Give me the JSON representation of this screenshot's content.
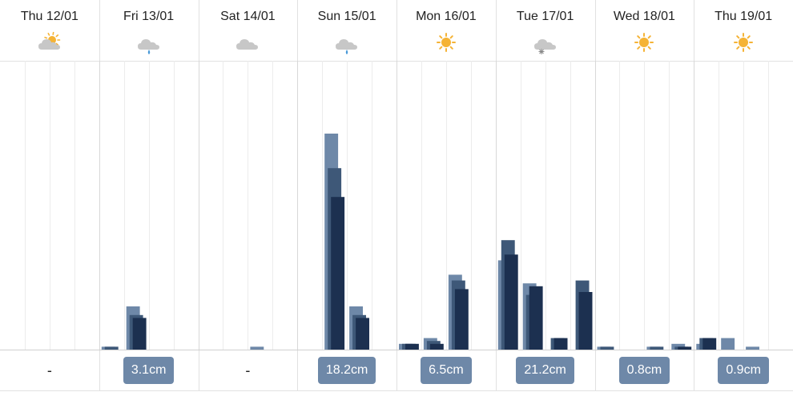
{
  "chart_data": {
    "type": "bar",
    "days": [
      {
        "label": "Thu 12/01",
        "icon": "sun-behind-cloud-icon",
        "total": "-"
      },
      {
        "label": "Fri 13/01",
        "icon": "rain-cloud-icon",
        "total": "3.1cm"
      },
      {
        "label": "Sat 14/01",
        "icon": "cloud-icon",
        "total": "-"
      },
      {
        "label": "Sun 15/01",
        "icon": "rain-cloud-icon",
        "total": "18.2cm"
      },
      {
        "label": "Mon 16/01",
        "icon": "sun-icon",
        "total": "6.5cm"
      },
      {
        "label": "Tue 17/01",
        "icon": "snow-cloud-icon",
        "total": "21.2cm"
      },
      {
        "label": "Wed 18/01",
        "icon": "sun-icon",
        "total": "0.8cm"
      },
      {
        "label": "Thu 19/01",
        "icon": "sun-icon",
        "total": "0.9cm"
      }
    ],
    "slots_per_day": 4,
    "ylim": [
      0,
      100
    ],
    "series": [
      {
        "color": "#6e88a8",
        "values": [
          0,
          0,
          0,
          0,
          1,
          15,
          0,
          0,
          0,
          0,
          1,
          0,
          0,
          75,
          15,
          0,
          2,
          4,
          26,
          0,
          31,
          23,
          0,
          0,
          1,
          0,
          1,
          2,
          2,
          4,
          1,
          0
        ]
      },
      {
        "color": "#3e5878",
        "values": [
          0,
          0,
          0,
          0,
          1,
          12,
          0,
          0,
          0,
          0,
          0,
          0,
          0,
          63,
          12,
          0,
          2,
          3,
          24,
          0,
          38,
          19,
          4,
          24,
          1,
          0,
          1,
          1,
          4,
          0,
          0,
          0
        ]
      },
      {
        "color": "#1c3050",
        "values": [
          0,
          0,
          0,
          0,
          0,
          11,
          0,
          0,
          0,
          0,
          0,
          0,
          0,
          53,
          11,
          0,
          2,
          2,
          21,
          0,
          33,
          22,
          4,
          20,
          0,
          0,
          0,
          1,
          4,
          0,
          0,
          0
        ]
      }
    ],
    "grid": true
  }
}
